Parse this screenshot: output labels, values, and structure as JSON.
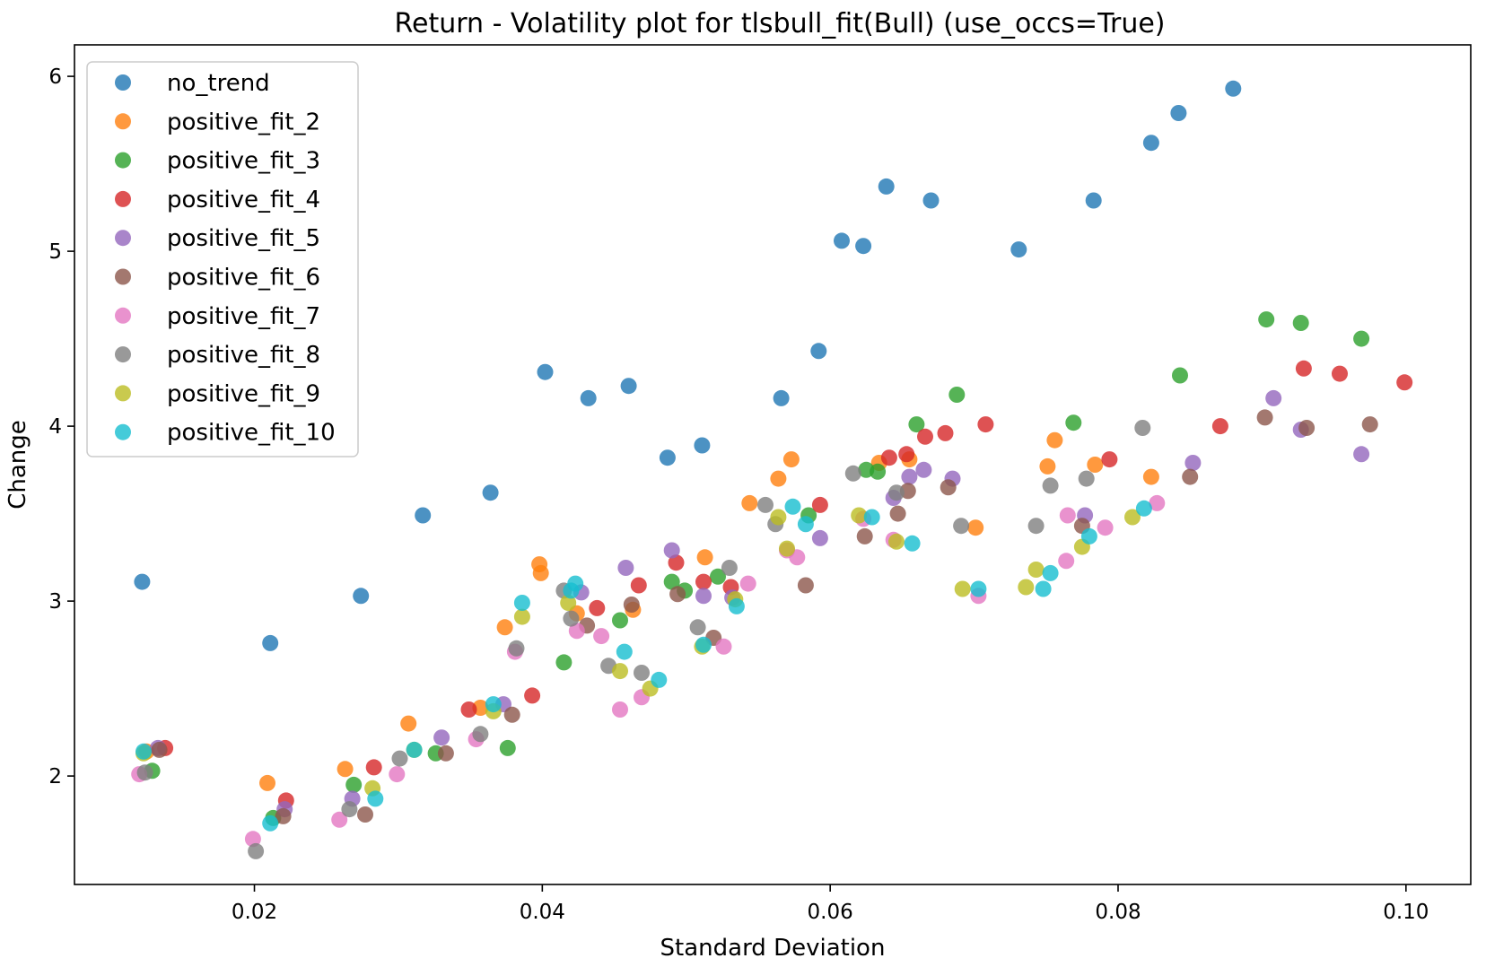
{
  "chart_data": {
    "type": "scatter",
    "title": "Return - Volatility plot for tlsbull_fit(Bull) (use_occs=True)",
    "xlabel": "Standard Deviation",
    "ylabel": "Change",
    "xlim": [
      0.0075,
      0.1045
    ],
    "ylim": [
      1.38,
      6.18
    ],
    "xticks": [
      0.02,
      0.04,
      0.06,
      0.08,
      0.1
    ],
    "xtick_labels": [
      "0.02",
      "0.04",
      "0.06",
      "0.08",
      "0.10"
    ],
    "yticks": [
      2,
      3,
      4,
      5,
      6
    ],
    "ytick_labels": [
      "2",
      "3",
      "4",
      "5",
      "6"
    ],
    "grid": false,
    "legend_position": "top-left",
    "series": [
      {
        "name": "no_trend",
        "color": "#1f77b4",
        "points": [
          [
            0.0122,
            3.11
          ],
          [
            0.0211,
            2.76
          ],
          [
            0.0274,
            3.03
          ],
          [
            0.0317,
            3.49
          ],
          [
            0.0364,
            3.62
          ],
          [
            0.0402,
            4.31
          ],
          [
            0.0432,
            4.16
          ],
          [
            0.046,
            4.23
          ],
          [
            0.0487,
            3.82
          ],
          [
            0.0511,
            3.89
          ],
          [
            0.0566,
            4.16
          ],
          [
            0.0592,
            4.43
          ],
          [
            0.0608,
            5.06
          ],
          [
            0.0623,
            5.03
          ],
          [
            0.0639,
            5.37
          ],
          [
            0.067,
            5.29
          ],
          [
            0.0731,
            5.01
          ],
          [
            0.0783,
            5.29
          ],
          [
            0.0823,
            5.62
          ],
          [
            0.0842,
            5.79
          ],
          [
            0.088,
            5.93
          ]
        ]
      },
      {
        "name": "positive_fit_2",
        "color": "#ff7f0e",
        "points": [
          [
            0.0125,
            2.14
          ],
          [
            0.0209,
            1.96
          ],
          [
            0.0263,
            2.04
          ],
          [
            0.0307,
            2.3
          ],
          [
            0.0357,
            2.39
          ],
          [
            0.0374,
            2.85
          ],
          [
            0.0398,
            3.21
          ],
          [
            0.0399,
            3.16
          ],
          [
            0.0424,
            2.93
          ],
          [
            0.0463,
            2.95
          ],
          [
            0.0513,
            3.25
          ],
          [
            0.0544,
            3.56
          ],
          [
            0.0564,
            3.7
          ],
          [
            0.0573,
            3.81
          ],
          [
            0.0634,
            3.79
          ],
          [
            0.0655,
            3.81
          ],
          [
            0.0701,
            3.42
          ],
          [
            0.0751,
            3.77
          ],
          [
            0.0756,
            3.92
          ],
          [
            0.0784,
            3.78
          ],
          [
            0.0823,
            3.71
          ]
        ]
      },
      {
        "name": "positive_fit_3",
        "color": "#2ca02c",
        "points": [
          [
            0.0129,
            2.03
          ],
          [
            0.0213,
            1.76
          ],
          [
            0.0269,
            1.95
          ],
          [
            0.0326,
            2.13
          ],
          [
            0.0376,
            2.16
          ],
          [
            0.0415,
            2.65
          ],
          [
            0.0454,
            2.89
          ],
          [
            0.049,
            3.11
          ],
          [
            0.0499,
            3.06
          ],
          [
            0.0522,
            3.14
          ],
          [
            0.0585,
            3.49
          ],
          [
            0.0625,
            3.75
          ],
          [
            0.0633,
            3.74
          ],
          [
            0.066,
            4.01
          ],
          [
            0.0688,
            4.18
          ],
          [
            0.0769,
            4.02
          ],
          [
            0.0843,
            4.29
          ],
          [
            0.0903,
            4.61
          ],
          [
            0.0927,
            4.59
          ],
          [
            0.0969,
            4.5
          ]
        ]
      },
      {
        "name": "positive_fit_4",
        "color": "#d62728",
        "points": [
          [
            0.0138,
            2.16
          ],
          [
            0.0222,
            1.86
          ],
          [
            0.0283,
            2.05
          ],
          [
            0.0349,
            2.38
          ],
          [
            0.0393,
            2.46
          ],
          [
            0.0438,
            2.96
          ],
          [
            0.0467,
            3.09
          ],
          [
            0.0493,
            3.22
          ],
          [
            0.0512,
            3.11
          ],
          [
            0.0531,
            3.08
          ],
          [
            0.0593,
            3.55
          ],
          [
            0.0641,
            3.82
          ],
          [
            0.0653,
            3.84
          ],
          [
            0.0666,
            3.94
          ],
          [
            0.068,
            3.96
          ],
          [
            0.0708,
            4.01
          ],
          [
            0.0794,
            3.81
          ],
          [
            0.0871,
            4.0
          ],
          [
            0.0929,
            4.33
          ],
          [
            0.0954,
            4.3
          ],
          [
            0.0999,
            4.25
          ]
        ]
      },
      {
        "name": "positive_fit_5",
        "color": "#9467bd",
        "points": [
          [
            0.0133,
            2.16
          ],
          [
            0.0221,
            1.81
          ],
          [
            0.0268,
            1.87
          ],
          [
            0.033,
            2.22
          ],
          [
            0.0373,
            2.41
          ],
          [
            0.0427,
            3.05
          ],
          [
            0.0458,
            3.19
          ],
          [
            0.049,
            3.29
          ],
          [
            0.0512,
            3.03
          ],
          [
            0.0532,
            3.02
          ],
          [
            0.0593,
            3.36
          ],
          [
            0.0644,
            3.59
          ],
          [
            0.0655,
            3.71
          ],
          [
            0.0665,
            3.75
          ],
          [
            0.0685,
            3.7
          ],
          [
            0.0777,
            3.49
          ],
          [
            0.0852,
            3.79
          ],
          [
            0.0908,
            4.16
          ],
          [
            0.0927,
            3.98
          ],
          [
            0.0969,
            3.84
          ]
        ]
      },
      {
        "name": "positive_fit_6",
        "color": "#8c564b",
        "points": [
          [
            0.0134,
            2.15
          ],
          [
            0.022,
            1.77
          ],
          [
            0.0277,
            1.78
          ],
          [
            0.0333,
            2.13
          ],
          [
            0.0379,
            2.35
          ],
          [
            0.0431,
            2.86
          ],
          [
            0.0462,
            2.98
          ],
          [
            0.0494,
            3.04
          ],
          [
            0.0519,
            2.79
          ],
          [
            0.0583,
            3.09
          ],
          [
            0.0624,
            3.37
          ],
          [
            0.0647,
            3.5
          ],
          [
            0.0654,
            3.63
          ],
          [
            0.0682,
            3.65
          ],
          [
            0.0775,
            3.43
          ],
          [
            0.085,
            3.71
          ],
          [
            0.0902,
            4.05
          ],
          [
            0.0931,
            3.99
          ],
          [
            0.0975,
            4.01
          ]
        ]
      },
      {
        "name": "positive_fit_7",
        "color": "#e377c2",
        "points": [
          [
            0.012,
            2.01
          ],
          [
            0.0199,
            1.64
          ],
          [
            0.0259,
            1.75
          ],
          [
            0.0299,
            2.01
          ],
          [
            0.0354,
            2.21
          ],
          [
            0.0381,
            2.71
          ],
          [
            0.0424,
            2.83
          ],
          [
            0.0441,
            2.8
          ],
          [
            0.0454,
            2.38
          ],
          [
            0.0469,
            2.45
          ],
          [
            0.0526,
            2.74
          ],
          [
            0.0543,
            3.1
          ],
          [
            0.057,
            3.29
          ],
          [
            0.0577,
            3.25
          ],
          [
            0.0623,
            3.47
          ],
          [
            0.0644,
            3.35
          ],
          [
            0.0703,
            3.03
          ],
          [
            0.0764,
            3.23
          ],
          [
            0.0765,
            3.49
          ],
          [
            0.0791,
            3.42
          ],
          [
            0.0827,
            3.56
          ]
        ]
      },
      {
        "name": "positive_fit_8",
        "color": "#7f7f7f",
        "points": [
          [
            0.0124,
            2.02
          ],
          [
            0.0201,
            1.57
          ],
          [
            0.0266,
            1.81
          ],
          [
            0.0301,
            2.1
          ],
          [
            0.0357,
            2.24
          ],
          [
            0.0382,
            2.73
          ],
          [
            0.0415,
            3.06
          ],
          [
            0.042,
            2.9
          ],
          [
            0.0446,
            2.63
          ],
          [
            0.0469,
            2.59
          ],
          [
            0.0508,
            2.85
          ],
          [
            0.053,
            3.19
          ],
          [
            0.0555,
            3.55
          ],
          [
            0.0562,
            3.44
          ],
          [
            0.0616,
            3.73
          ],
          [
            0.0646,
            3.62
          ],
          [
            0.0691,
            3.43
          ],
          [
            0.0743,
            3.43
          ],
          [
            0.0753,
            3.66
          ],
          [
            0.0778,
            3.7
          ],
          [
            0.0817,
            3.99
          ]
        ]
      },
      {
        "name": "positive_fit_9",
        "color": "#bcbd22",
        "points": [
          [
            0.0123,
            2.13
          ],
          [
            0.0282,
            1.93
          ],
          [
            0.0311,
            2.15
          ],
          [
            0.0366,
            2.37
          ],
          [
            0.0386,
            2.91
          ],
          [
            0.0418,
            2.99
          ],
          [
            0.0454,
            2.6
          ],
          [
            0.0475,
            2.5
          ],
          [
            0.0511,
            2.74
          ],
          [
            0.0534,
            3.01
          ],
          [
            0.0564,
            3.48
          ],
          [
            0.057,
            3.3
          ],
          [
            0.062,
            3.49
          ],
          [
            0.0646,
            3.34
          ],
          [
            0.0692,
            3.07
          ],
          [
            0.0736,
            3.08
          ],
          [
            0.0743,
            3.18
          ],
          [
            0.0775,
            3.31
          ],
          [
            0.081,
            3.48
          ]
        ]
      },
      {
        "name": "positive_fit_10",
        "color": "#17becf",
        "points": [
          [
            0.0123,
            2.14
          ],
          [
            0.0211,
            1.73
          ],
          [
            0.0284,
            1.87
          ],
          [
            0.0311,
            2.15
          ],
          [
            0.0366,
            2.41
          ],
          [
            0.0386,
            2.99
          ],
          [
            0.042,
            3.06
          ],
          [
            0.0423,
            3.1
          ],
          [
            0.0457,
            2.71
          ],
          [
            0.0481,
            2.55
          ],
          [
            0.0512,
            2.75
          ],
          [
            0.0535,
            2.97
          ],
          [
            0.0574,
            3.54
          ],
          [
            0.0583,
            3.44
          ],
          [
            0.0629,
            3.48
          ],
          [
            0.0657,
            3.33
          ],
          [
            0.0703,
            3.07
          ],
          [
            0.0748,
            3.07
          ],
          [
            0.0753,
            3.16
          ],
          [
            0.078,
            3.37
          ],
          [
            0.0818,
            3.53
          ]
        ]
      }
    ]
  }
}
